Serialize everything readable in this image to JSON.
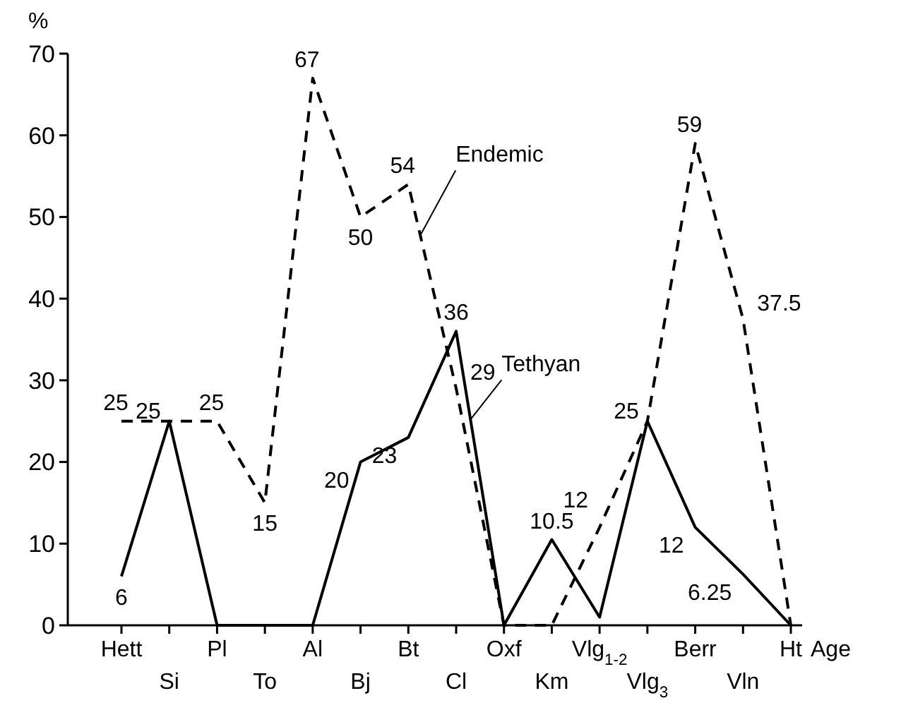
{
  "chart_data": {
    "type": "line",
    "ylabel": "%",
    "xlabel": "Age",
    "categories": [
      "Hett",
      "Si",
      "Pl",
      "To",
      "Al",
      "Bj",
      "Bt",
      "Cl",
      "Oxf",
      "Km",
      "Vlg$_{1-2}$",
      "Vlg$_{3}$",
      "Berr",
      "Vln",
      "Ht"
    ],
    "ylim": [
      0,
      70
    ],
    "yticks": [
      0,
      10,
      20,
      30,
      40,
      50,
      60,
      70
    ],
    "grid": false,
    "legend": false,
    "marker": "none",
    "series": [
      {
        "name": "Endemic",
        "color": "#000000",
        "line_style": "dashed",
        "values": [
          25,
          25,
          25,
          15,
          67,
          50,
          54,
          29,
          0,
          0,
          12,
          25,
          59,
          37.5,
          0
        ],
        "value_labels": [
          "25",
          "25",
          "25",
          "15",
          "67",
          "50",
          "54",
          "29",
          null,
          null,
          "12",
          null,
          "59",
          "37.5",
          null
        ]
      },
      {
        "name": "Tethyan",
        "color": "#000000",
        "line_style": "solid",
        "values": [
          6,
          25,
          0,
          0,
          0,
          20,
          23,
          36,
          0,
          10.5,
          1,
          25,
          12,
          6.25,
          0
        ],
        "value_labels": [
          "6",
          null,
          null,
          null,
          null,
          "20",
          "23",
          "36",
          null,
          "10.5",
          null,
          "25",
          "12",
          "6.25",
          null
        ]
      }
    ]
  }
}
